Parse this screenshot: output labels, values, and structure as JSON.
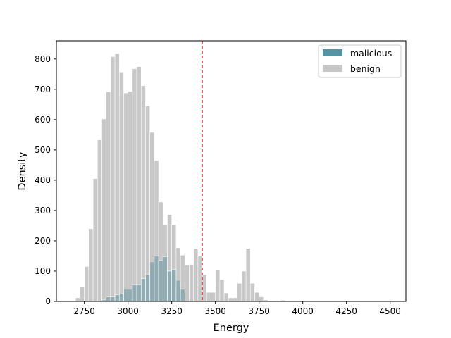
{
  "chart_data": {
    "type": "bar",
    "title": "",
    "xlabel": "Energy",
    "ylabel": "Density",
    "xlim": [
      2590,
      4590
    ],
    "ylim": [
      0,
      860
    ],
    "xticks": [
      2750,
      3000,
      3250,
      3500,
      3750,
      4000,
      4250,
      4500
    ],
    "yticks": [
      0,
      100,
      200,
      300,
      400,
      500,
      600,
      700,
      800
    ],
    "bin_width": 25,
    "threshold": {
      "x": 3425,
      "color": "#e31a1c",
      "style": "dashed"
    },
    "legend": {
      "position": "top-right",
      "entries": [
        "malicious",
        "benign"
      ]
    },
    "series": [
      {
        "name": "benign",
        "color": "#b0b0b0",
        "bin_start": 2700,
        "values": [
          12,
          47,
          115,
          240,
          405,
          533,
          602,
          692,
          808,
          818,
          757,
          688,
          693,
          768,
          775,
          712,
          645,
          558,
          465,
          328,
          253,
          287,
          254,
          177,
          153,
          120,
          122,
          175,
          150,
          88,
          30,
          30,
          103,
          73,
          28,
          12,
          12,
          60,
          100,
          175,
          60,
          30,
          15,
          5,
          2,
          2,
          0,
          4,
          0,
          0,
          0,
          0,
          0,
          0,
          0,
          0,
          0,
          0,
          0,
          0,
          0,
          0,
          0,
          0,
          0,
          0,
          0,
          0,
          0,
          0,
          0,
          0
        ]
      },
      {
        "name": "malicious",
        "color": "#2a7b8c",
        "bin_start": 2700,
        "values": [
          0,
          0,
          0,
          0,
          0,
          0,
          5,
          15,
          15,
          22,
          25,
          40,
          40,
          55,
          55,
          75,
          90,
          132,
          150,
          135,
          148,
          100,
          105,
          70,
          40,
          0,
          0,
          0,
          0,
          0,
          0,
          0,
          0,
          0,
          0,
          0,
          0,
          0,
          0,
          0,
          0,
          0,
          0,
          0,
          0,
          0,
          0,
          0,
          0,
          0,
          0,
          0,
          0,
          0,
          0,
          0,
          0,
          0,
          0,
          0,
          0,
          0,
          0,
          0,
          0,
          0,
          0,
          0,
          0,
          0,
          0,
          0
        ]
      }
    ]
  }
}
